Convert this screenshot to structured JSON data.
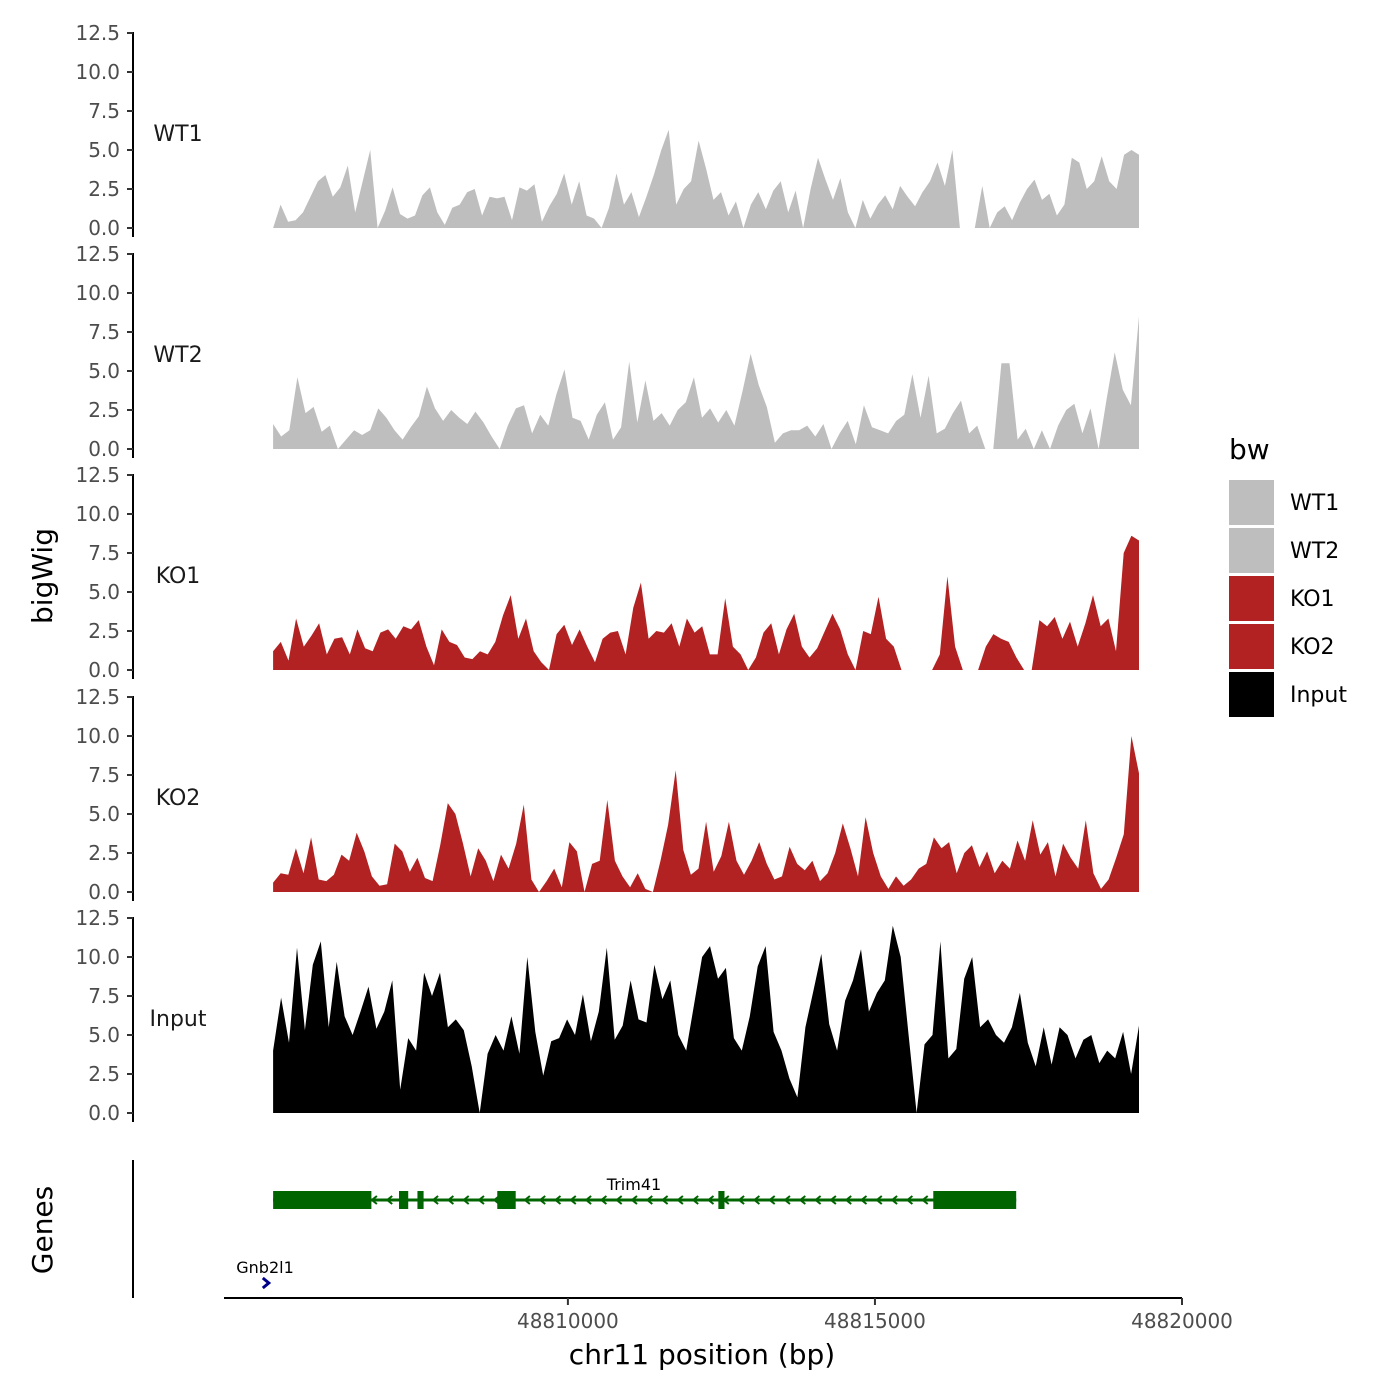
{
  "chart_data": {
    "type": "area",
    "title": "",
    "ylabel": "bigWig",
    "xlabel": "chr11 position (bp)",
    "ylim": [
      0,
      12.5
    ],
    "yticks": [
      0.0,
      2.5,
      5.0,
      7.5,
      10.0,
      12.5
    ],
    "ytick_labels": [
      "0.0",
      "2.5",
      "5.0",
      "7.5",
      "10.0",
      "12.5"
    ],
    "xlim": [
      48804400,
      48820000
    ],
    "xticks": [
      48810000,
      48815000,
      48820000
    ],
    "xtick_labels": [
      "48810000",
      "48815000",
      "48820000"
    ],
    "region": [
      48805200,
      48819300
    ],
    "series": [
      {
        "name": "WT1",
        "color": "#bebebe",
        "values": [
          0.0,
          1.5,
          0.4,
          0.5,
          1.0,
          2.0,
          3.0,
          3.4,
          2.0,
          2.6,
          4.0,
          1.0,
          3.0,
          5.0,
          0.0,
          1.1,
          2.6,
          0.9,
          0.6,
          0.8,
          2.1,
          2.6,
          1.0,
          0.2,
          1.3,
          1.5,
          2.3,
          2.5,
          0.8,
          2.0,
          1.9,
          2.0,
          0.5,
          2.6,
          2.4,
          2.8,
          0.4,
          1.4,
          2.2,
          3.5,
          1.5,
          3.0,
          0.8,
          0.6,
          0.0,
          1.3,
          3.5,
          1.5,
          2.3,
          0.7,
          2.0,
          3.4,
          5.0,
          6.3,
          1.5,
          2.5,
          3.0,
          5.6,
          3.8,
          1.8,
          2.3,
          0.8,
          1.7,
          0.0,
          1.5,
          2.3,
          1.2,
          2.4,
          3.0,
          1.0,
          2.4,
          0.0,
          2.5,
          4.5,
          3.1,
          1.8,
          3.2,
          1.0,
          0.0,
          1.8,
          0.6,
          1.5,
          2.1,
          1.2,
          2.7,
          2.0,
          1.4,
          2.3,
          3.0,
          4.2,
          2.7,
          5.0,
          0.0,
          0.0,
          0.0,
          2.7,
          0.0,
          1.0,
          1.4,
          0.5,
          1.6,
          2.5,
          3.1,
          1.8,
          2.2,
          0.8,
          1.5,
          4.5,
          4.2,
          2.5,
          3.0,
          4.6,
          3.0,
          2.5,
          4.7,
          5.0,
          4.7
        ]
      },
      {
        "name": "WT2",
        "color": "#bebebe",
        "values": [
          1.6,
          0.8,
          1.2,
          4.6,
          2.3,
          2.7,
          1.1,
          1.5,
          0.0,
          0.6,
          1.2,
          0.9,
          1.2,
          2.6,
          2.0,
          1.2,
          0.6,
          1.4,
          2.1,
          4.0,
          2.6,
          1.8,
          2.5,
          2.0,
          1.6,
          2.4,
          1.7,
          0.8,
          0.0,
          1.5,
          2.6,
          2.8,
          1.0,
          2.2,
          1.5,
          3.5,
          5.1,
          2.0,
          1.8,
          0.6,
          2.2,
          3.0,
          0.6,
          1.4,
          5.6,
          1.7,
          4.4,
          1.8,
          2.3,
          1.5,
          2.5,
          3.0,
          4.6,
          2.0,
          2.6,
          1.7,
          2.5,
          1.5,
          3.7,
          6.1,
          4.1,
          2.7,
          0.4,
          1.0,
          1.2,
          1.2,
          1.5,
          0.8,
          1.6,
          0.0,
          1.0,
          1.8,
          0.3,
          2.8,
          1.4,
          1.2,
          1.0,
          1.8,
          2.2,
          4.8,
          2.0,
          4.7,
          1.0,
          1.3,
          2.3,
          3.1,
          1.0,
          1.5,
          0.0,
          0.0,
          5.5,
          5.5,
          0.6,
          1.3,
          0.0,
          1.2,
          0.0,
          1.5,
          2.5,
          2.9,
          1.0,
          2.6,
          0.0,
          3.2,
          6.2,
          3.8,
          2.8,
          8.5
        ]
      },
      {
        "name": "KO1",
        "color": "#b22222",
        "values": [
          1.2,
          1.8,
          0.6,
          3.3,
          1.5,
          2.2,
          3.0,
          1.0,
          2.0,
          2.1,
          1.0,
          2.6,
          1.4,
          1.2,
          2.4,
          2.6,
          2.0,
          2.8,
          2.6,
          3.2,
          1.5,
          0.3,
          2.6,
          1.8,
          1.6,
          0.8,
          0.7,
          1.2,
          1.0,
          1.8,
          3.5,
          4.8,
          2.0,
          3.3,
          1.2,
          0.5,
          0.0,
          2.3,
          2.9,
          1.6,
          2.6,
          1.5,
          0.5,
          2.0,
          2.4,
          2.5,
          1.0,
          4.0,
          5.6,
          2.0,
          2.5,
          2.4,
          3.0,
          1.5,
          3.3,
          2.4,
          2.8,
          1.0,
          1.0,
          4.6,
          1.5,
          1.0,
          0.0,
          0.8,
          2.4,
          3.0,
          1.0,
          2.6,
          3.6,
          1.5,
          0.8,
          1.4,
          2.5,
          3.6,
          2.6,
          1.0,
          0.0,
          2.5,
          2.3,
          4.7,
          2.0,
          1.5,
          0.0,
          0.0,
          0.0,
          0.0,
          0.0,
          1.0,
          6.0,
          1.5,
          0.0,
          0.0,
          0.0,
          1.5,
          2.3,
          2.0,
          1.8,
          0.8,
          0.0,
          0.0,
          3.2,
          2.8,
          3.4,
          2.0,
          3.1,
          1.5,
          3.0,
          4.8,
          2.8,
          3.3,
          1.2,
          7.5,
          8.6,
          8.3
        ]
      },
      {
        "name": "KO2",
        "color": "#b22222",
        "values": [
          0.6,
          1.2,
          1.1,
          2.8,
          1.2,
          3.5,
          0.8,
          0.7,
          1.1,
          2.4,
          2.0,
          3.8,
          2.6,
          1.0,
          0.4,
          0.5,
          3.1,
          2.6,
          1.3,
          2.2,
          0.9,
          0.7,
          3.0,
          5.7,
          5.0,
          3.1,
          1.0,
          2.8,
          2.0,
          0.7,
          2.4,
          1.5,
          3.1,
          5.6,
          0.8,
          0.0,
          0.7,
          1.5,
          0.3,
          3.2,
          2.6,
          0.0,
          1.8,
          2.0,
          5.9,
          2.0,
          1.0,
          0.3,
          1.2,
          0.2,
          0.0,
          2.0,
          4.3,
          7.8,
          2.7,
          1.1,
          1.5,
          4.5,
          1.3,
          2.3,
          4.5,
          2.0,
          1.1,
          2.0,
          3.2,
          1.8,
          0.8,
          1.0,
          2.9,
          1.8,
          1.4,
          2.0,
          0.7,
          1.2,
          2.5,
          4.4,
          2.8,
          1.0,
          4.8,
          2.5,
          1.0,
          0.2,
          1.0,
          0.4,
          0.8,
          1.5,
          1.8,
          3.5,
          2.8,
          3.2,
          1.2,
          2.5,
          3.0,
          1.6,
          2.6,
          1.2,
          2.0,
          1.5,
          3.3,
          2.0,
          4.6,
          2.4,
          3.2,
          1.0,
          3.1,
          2.2,
          1.5,
          4.6,
          1.2,
          0.2,
          0.8,
          2.2,
          3.7,
          10.0,
          7.6
        ]
      },
      {
        "name": "Input",
        "color": "#000000",
        "values": [
          4.0,
          7.4,
          4.5,
          10.6,
          5.3,
          9.5,
          11.0,
          5.5,
          9.7,
          6.2,
          5.0,
          6.5,
          8.1,
          5.4,
          6.5,
          8.5,
          1.5,
          4.8,
          4.0,
          9.0,
          7.5,
          9.0,
          5.5,
          6.0,
          5.3,
          3.0,
          0.0,
          3.8,
          5.0,
          4.0,
          6.2,
          3.8,
          10.0,
          5.2,
          2.4,
          4.6,
          4.8,
          6.0,
          5.0,
          7.6,
          4.6,
          6.5,
          10.6,
          4.7,
          5.6,
          8.5,
          6.0,
          5.8,
          9.5,
          7.3,
          8.5,
          5.0,
          4.0,
          7.0,
          10.0,
          10.7,
          8.6,
          9.3,
          4.8,
          4.0,
          6.2,
          9.4,
          10.7,
          5.2,
          4.0,
          2.2,
          1.0,
          5.5,
          7.8,
          10.2,
          5.7,
          4.0,
          7.2,
          8.5,
          10.5,
          6.5,
          7.7,
          8.5,
          12.0,
          10.0,
          5.0,
          0.0,
          4.4,
          5.0,
          11.0,
          3.5,
          4.1,
          8.6,
          10.0,
          5.5,
          6.0,
          5.0,
          4.5,
          5.5,
          7.7,
          4.5,
          3.0,
          5.5,
          3.1,
          5.5,
          5.0,
          3.5,
          4.7,
          5.0,
          3.2,
          4.0,
          3.5,
          5.2,
          2.5,
          5.6
        ]
      }
    ],
    "legend": {
      "title": "bw",
      "position": "right",
      "entries": [
        "WT1",
        "WT2",
        "KO1",
        "KO2",
        "Input"
      ]
    },
    "genes_track": {
      "ylabel": "Genes",
      "genes": [
        {
          "name": "Trim41",
          "strand": "-",
          "color": "#006400",
          "start": 48805200,
          "end": 48817300,
          "exons": [
            [
              48805200,
              48806800
            ],
            [
              48807250,
              48807400
            ],
            [
              48807550,
              48807650
            ],
            [
              48808850,
              48809150
            ],
            [
              48812450,
              48812550
            ],
            [
              48815950,
              48817300
            ]
          ]
        },
        {
          "name": "Gnb2l1",
          "strand": "+",
          "color": "#00008b",
          "start": 48805080,
          "end": 48805200,
          "exons": []
        }
      ]
    }
  }
}
